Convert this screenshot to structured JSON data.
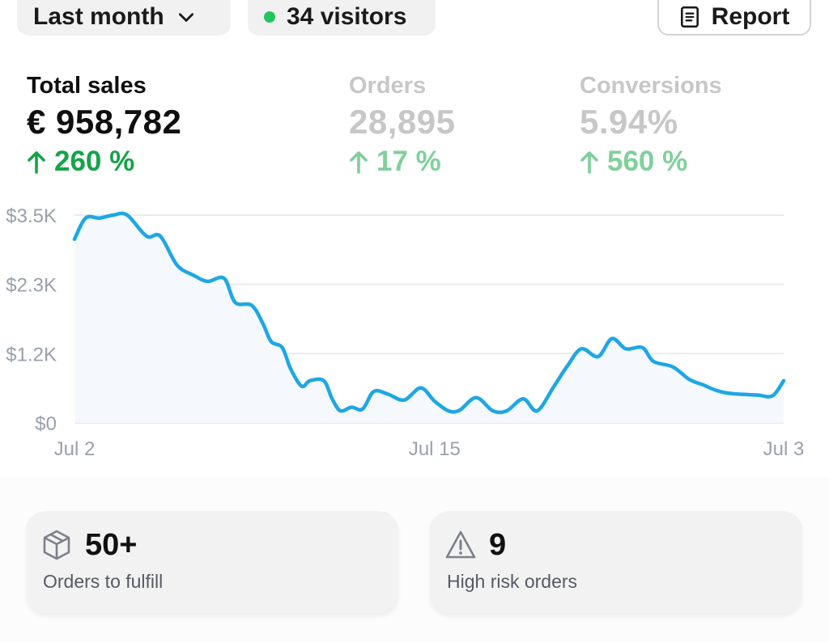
{
  "filters": {
    "period_label": "Last month",
    "visitors_label": "34 visitors",
    "report_label": "Report"
  },
  "metrics": [
    {
      "label": "Total sales",
      "value": "€ 958,782",
      "change": "260 %"
    },
    {
      "label": "Orders",
      "value": "28,895",
      "change": "17 %"
    },
    {
      "label": "Conversions",
      "value": "5.94%",
      "change": "560 %"
    }
  ],
  "colors": {
    "line": "#1ea7e4",
    "positive": "#16a34a",
    "muted_positive": "#7fd09a"
  },
  "chart_data": {
    "type": "line",
    "title": "Total sales",
    "ylabel": "",
    "xlabel": "",
    "yticks": [
      "$0",
      "$1.2K",
      "$2.3K",
      "$3.5K"
    ],
    "ytick_values": [
      0,
      1150,
      2300,
      3450
    ],
    "ylim": [
      0,
      3450
    ],
    "xticks": [
      "Jul 2",
      "Jul 15",
      "Jul 3"
    ],
    "xtick_positions": [
      0,
      13,
      25.6
    ],
    "xlim": [
      0,
      25.6
    ],
    "series": [
      {
        "name": "Total sales",
        "x": [
          0,
          0.4,
          0.9,
          1.4,
          1.9,
          2.6,
          3.1,
          3.7,
          4.3,
          4.8,
          5.4,
          5.8,
          6.4,
          6.8,
          7.1,
          7.5,
          7.8,
          8.2,
          8.5,
          9.0,
          9.3,
          9.6,
          10.0,
          10.4,
          10.8,
          11.3,
          11.9,
          12.5,
          13.0,
          13.5,
          13.9,
          14.5,
          15.1,
          15.6,
          16.2,
          16.7,
          17.3,
          17.8,
          18.3,
          18.9,
          19.4,
          19.9,
          20.5,
          20.9,
          21.6,
          22.2,
          22.7,
          23.1,
          23.5,
          23.9,
          24.3,
          24.7,
          25.2,
          25.6
        ],
        "values": [
          3050,
          3400,
          3400,
          3450,
          3450,
          3100,
          3100,
          2620,
          2450,
          2350,
          2400,
          2000,
          1950,
          1650,
          1350,
          1250,
          900,
          610,
          700,
          700,
          400,
          200,
          260,
          230,
          520,
          480,
          380,
          580,
          360,
          200,
          210,
          420,
          200,
          200,
          400,
          200,
          600,
          950,
          1230,
          1100,
          1400,
          1230,
          1250,
          1020,
          930,
          720,
          630,
          550,
          500,
          480,
          470,
          460,
          450,
          700
        ]
      }
    ]
  },
  "tasks": [
    {
      "value": "50+",
      "label": "Orders to fulfill",
      "icon": "package-icon"
    },
    {
      "value": "9",
      "label": "High risk orders",
      "icon": "warning-icon"
    }
  ]
}
